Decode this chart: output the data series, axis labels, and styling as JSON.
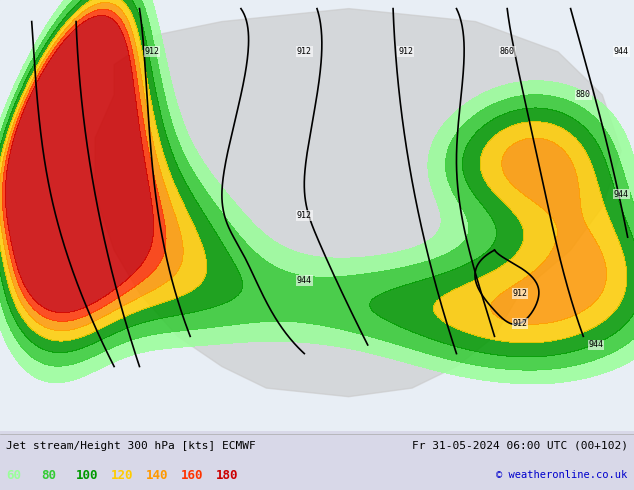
{
  "title_left": "Jet stream/Height 300 hPa [kts] ECMWF",
  "title_right": "Fr 31-05-2024 06:00 UTC (00+102)",
  "copyright": "© weatheronline.co.uk",
  "legend_values": [
    "60",
    "80",
    "100",
    "120",
    "140",
    "160",
    "180"
  ],
  "legend_colors": [
    "#99ff99",
    "#33cc33",
    "#009900",
    "#ffcc00",
    "#ff9900",
    "#ff3300",
    "#cc0000"
  ],
  "bg_color": "#e8e8f0",
  "map_bg": "#f0f0f0",
  "border_color": "#cccccc",
  "figsize": [
    6.34,
    4.9
  ],
  "dpi": 100,
  "text_color": "#000000",
  "bottom_bar_color": "#d8d8e8",
  "contour_color": "#000000",
  "land_color": "#d0d0d0"
}
